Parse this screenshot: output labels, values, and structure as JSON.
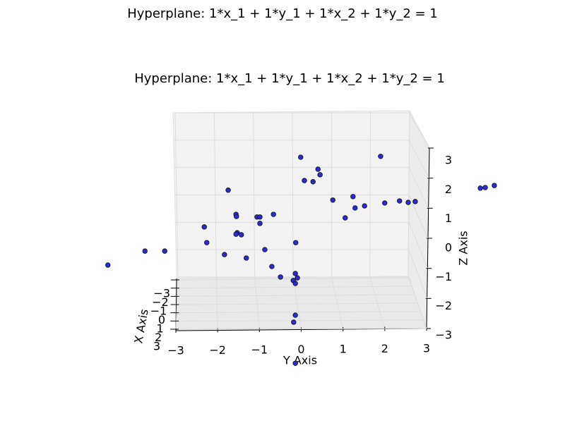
{
  "chart_data": {
    "type": "scatter3d",
    "suptitle": "Hyperplane: 1*x_1 + 1*y_1 + 1*x_2 + 1*y_2 = 1",
    "title": "Hyperplane: 1*x_1 + 1*y_1 + 1*x_2 + 1*y_2 = 1",
    "xlabel": "X Axis",
    "ylabel": "Y Axis",
    "zlabel": "Z Axis",
    "xlim": [
      -3,
      3
    ],
    "ylim": [
      -3,
      3
    ],
    "zlim": [
      -3,
      3
    ],
    "xticks": [
      {
        "value": -3,
        "label": "−3"
      },
      {
        "value": -2,
        "label": "−2"
      },
      {
        "value": -1,
        "label": "−1"
      },
      0,
      1,
      2,
      3
    ],
    "yticks": [
      {
        "value": -3,
        "label": "−3"
      },
      {
        "value": -2,
        "label": "−2"
      },
      {
        "value": -1,
        "label": "−1"
      },
      0,
      1,
      2,
      3
    ],
    "zticks": [
      {
        "value": -3,
        "label": "−3"
      },
      {
        "value": -2,
        "label": "−2"
      },
      {
        "value": -1,
        "label": "−1"
      },
      0,
      1,
      2,
      3
    ],
    "grid": true,
    "color": "#2b2bd6",
    "points": {
      "y": [
        0.03,
        1.97,
        0.45,
        0.5,
        0.12,
        0.33,
        -1.73,
        1.3,
        0.81,
        2.43,
        2.64,
        2.81,
        2.07,
        1.58,
        1.35,
        -1.54,
        -1.53,
        -0.63,
        -1.03,
        -0.96,
        1.11,
        -0.96,
        -2.31,
        -1.51,
        -1.54,
        -1.41,
        -2.25,
        -0.09,
        -0.84,
        -1.82,
        -1.29,
        -0.67,
        -0.46,
        -0.1,
        -0.05,
        -0.15,
        -0.1,
        -0.1,
        -0.14,
        -4.65,
        -3.75,
        -3.27,
        4.39,
        4.51,
        4.73,
        -0.1
      ],
      "z": [
        3.12,
        3.15,
        2.71,
        2.52,
        2.32,
        2.28,
        1.99,
        1.77,
        1.65,
        1.62,
        1.57,
        1.6,
        1.55,
        1.45,
        1.38,
        1.16,
        1.09,
        1.16,
        1.07,
        1.07,
        1.04,
        0.85,
        0.73,
        0.53,
        0.48,
        0.46,
        0.19,
        0.19,
        -0.05,
        -0.22,
        -0.34,
        -0.63,
        -0.99,
        -0.87,
        -1.02,
        -1.11,
        -1.21,
        -2.3,
        -2.54,
        -0.58,
        -0.1,
        -0.1,
        2.06,
        2.08,
        2.15,
        -3.95
      ]
    }
  }
}
